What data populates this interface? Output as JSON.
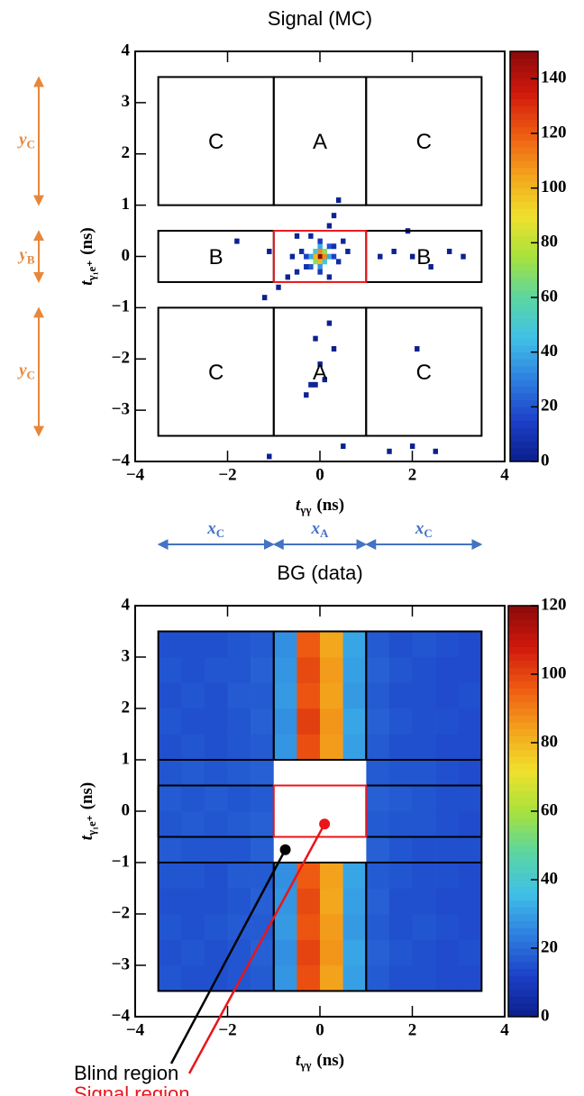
{
  "chart_data": [
    {
      "type": "heatmap",
      "title": "Signal (MC)",
      "xlabel": {
        "symbol": "t",
        "sub": "γγ",
        "unit": "(ns)"
      },
      "ylabel": {
        "symbol": "t",
        "sub": "γ₁e⁺",
        "unit": "(ns)"
      },
      "xlim": [
        -4,
        4
      ],
      "ylim": [
        -4,
        4
      ],
      "xticks": [
        {
          "value": -4,
          "label": "−4"
        },
        {
          "value": -2,
          "label": "−2"
        },
        0,
        2,
        4
      ],
      "yticks": [
        {
          "value": -4,
          "label": "−4"
        },
        {
          "value": -3,
          "label": "−3"
        },
        {
          "value": -2,
          "label": "−2"
        },
        {
          "value": -1,
          "label": "−1"
        },
        0,
        1,
        2,
        3,
        4
      ],
      "zlim": [
        0,
        150
      ],
      "zticks": [
        0,
        20,
        40,
        60,
        80,
        100,
        120,
        140
      ],
      "colormap": [
        "#0b1e8c",
        "#1c40c8",
        "#2f7fe0",
        "#3fc0e8",
        "#5ad6a0",
        "#a8e23c",
        "#f0e02c",
        "#f3a21c",
        "#ef5a12",
        "#d0180c",
        "#8a0a0a"
      ],
      "cell_size": 0.1,
      "cells": [
        [
          0,
          0,
          150
        ],
        [
          0.1,
          0,
          110
        ],
        [
          -0.1,
          0,
          100
        ],
        [
          0,
          0.1,
          110
        ],
        [
          0,
          -0.1,
          100
        ],
        [
          0.1,
          0.1,
          70
        ],
        [
          -0.1,
          -0.1,
          70
        ],
        [
          0.1,
          -0.1,
          50
        ],
        [
          -0.1,
          0.1,
          50
        ],
        [
          0.2,
          0,
          40
        ],
        [
          -0.2,
          0,
          40
        ],
        [
          0,
          0.2,
          40
        ],
        [
          0,
          -0.2,
          35
        ],
        [
          0.2,
          0.2,
          20
        ],
        [
          -0.2,
          -0.2,
          20
        ],
        [
          0.3,
          0,
          15
        ],
        [
          -0.3,
          0,
          15
        ],
        [
          0,
          0.3,
          12
        ],
        [
          0,
          -0.3,
          12
        ],
        [
          -0.3,
          -0.2,
          8
        ],
        [
          0.3,
          0.2,
          8
        ],
        [
          -0.4,
          0.1,
          6
        ],
        [
          0.4,
          -0.1,
          6
        ],
        [
          -0.5,
          -0.3,
          4
        ],
        [
          0.5,
          0.3,
          4
        ],
        [
          -0.6,
          0,
          3
        ],
        [
          0.6,
          0.1,
          3
        ],
        [
          -0.2,
          0.4,
          3
        ],
        [
          0.2,
          -0.4,
          3
        ],
        [
          0.3,
          0.8,
          2
        ],
        [
          0.4,
          1.1,
          1
        ],
        [
          0.2,
          0.6,
          2
        ],
        [
          -0.5,
          0.4,
          2
        ],
        [
          -0.7,
          -0.4,
          2
        ],
        [
          -0.9,
          -0.6,
          1
        ],
        [
          -1.2,
          -0.8,
          1
        ],
        [
          -1.1,
          0.1,
          1
        ],
        [
          -1.8,
          0.3,
          1
        ],
        [
          1.3,
          0,
          2
        ],
        [
          1.6,
          0.1,
          1
        ],
        [
          2.0,
          0,
          1
        ],
        [
          2.4,
          -0.2,
          1
        ],
        [
          2.8,
          0.1,
          1
        ],
        [
          3.1,
          0,
          1
        ],
        [
          1.9,
          0.5,
          1
        ],
        [
          0.2,
          -1.3,
          1
        ],
        [
          -0.1,
          -1.6,
          1
        ],
        [
          -0.2,
          -2.5,
          3
        ],
        [
          -0.1,
          -2.5,
          3
        ],
        [
          0.1,
          -2.4,
          2
        ],
        [
          -0.3,
          -2.7,
          2
        ],
        [
          0,
          -2.1,
          1
        ],
        [
          0.3,
          -1.8,
          1
        ],
        [
          2.1,
          -1.8,
          1
        ],
        [
          0.5,
          -3.7,
          1
        ],
        [
          1.5,
          -3.8,
          1
        ],
        [
          2.0,
          -3.7,
          1
        ],
        [
          2.5,
          -3.8,
          1
        ],
        [
          -1.1,
          -3.9,
          1
        ]
      ],
      "regions": [
        {
          "label": "C",
          "x": [
            -3.5,
            -1
          ],
          "y": [
            1,
            3.5
          ]
        },
        {
          "label": "A",
          "x": [
            -1,
            1
          ],
          "y": [
            1,
            3.5
          ]
        },
        {
          "label": "C",
          "x": [
            1,
            3.5
          ],
          "y": [
            1,
            3.5
          ]
        },
        {
          "label": "B",
          "x": [
            -3.5,
            -1
          ],
          "y": [
            -0.5,
            0.5
          ]
        },
        {
          "label": "B",
          "x": [
            1,
            3.5
          ],
          "y": [
            -0.5,
            0.5
          ]
        },
        {
          "label": "C",
          "x": [
            -3.5,
            -1
          ],
          "y": [
            -3.5,
            -1
          ]
        },
        {
          "label": "A",
          "x": [
            -1,
            1
          ],
          "y": [
            -3.5,
            -1
          ]
        },
        {
          "label": "C",
          "x": [
            1,
            3.5
          ],
          "y": [
            -3.5,
            -1
          ]
        }
      ],
      "signal_region": {
        "x": [
          -1,
          1
        ],
        "y": [
          -0.5,
          0.5
        ],
        "color": "#e8161b"
      },
      "y_annotations": [
        {
          "symbol": "y",
          "sub": "C",
          "y": [
            1,
            3.5
          ]
        },
        {
          "symbol": "y",
          "sub": "B",
          "y": [
            -0.5,
            0.5
          ]
        },
        {
          "symbol": "y",
          "sub": "C",
          "y": [
            -3.5,
            -1
          ]
        }
      ],
      "x_annotations": [
        {
          "symbol": "x",
          "sub": "C",
          "x": [
            -3.5,
            -1
          ]
        },
        {
          "symbol": "x",
          "sub": "A",
          "x": [
            -1,
            1
          ]
        },
        {
          "symbol": "x",
          "sub": "C",
          "x": [
            1,
            3.5
          ]
        }
      ],
      "annotation_colors": {
        "y": "#e8873a",
        "x": "#4472c4"
      }
    },
    {
      "type": "heatmap",
      "title": "BG (data)",
      "xlabel": {
        "symbol": "t",
        "sub": "γγ",
        "unit": "(ns)"
      },
      "ylabel": {
        "symbol": "t",
        "sub": "γ₁e⁺",
        "unit": "(ns)"
      },
      "xlim": [
        -4,
        4
      ],
      "ylim": [
        -4,
        4
      ],
      "xticks": [
        {
          "value": -4,
          "label": "−4"
        },
        {
          "value": -2,
          "label": "−2"
        },
        0,
        2,
        4
      ],
      "yticks": [
        {
          "value": -4,
          "label": "−4"
        },
        {
          "value": -3,
          "label": "−3"
        },
        {
          "value": -2,
          "label": "−2"
        },
        {
          "value": -1,
          "label": "−1"
        },
        0,
        1,
        2,
        3,
        4
      ],
      "zlim": [
        0,
        120
      ],
      "zticks": [
        0,
        20,
        40,
        60,
        80,
        100,
        120
      ],
      "colormap": [
        "#0b1e8c",
        "#1c40c8",
        "#2f7fe0",
        "#3fc0e8",
        "#5ad6a0",
        "#a8e23c",
        "#f0e02c",
        "#f3a21c",
        "#ef5a12",
        "#d0180c",
        "#8a0a0a"
      ],
      "xbins": [
        -3.5,
        -3,
        -2.5,
        -2,
        -1.5,
        -1,
        -0.5,
        0,
        0.5,
        1,
        1.5,
        2,
        2.5,
        3,
        3.5
      ],
      "ybins": [
        -3.5,
        -3,
        -2.5,
        -2,
        -1.5,
        -1,
        -0.5,
        0,
        0.5,
        1,
        1.5,
        2,
        2.5,
        3,
        3.5
      ],
      "z": [
        [
          16,
          15,
          15,
          16,
          17,
          28,
          98,
          84,
          30,
          17,
          15,
          15,
          14,
          14
        ],
        [
          15,
          16,
          15,
          16,
          18,
          27,
          100,
          86,
          31,
          18,
          16,
          15,
          14,
          15
        ],
        [
          16,
          15,
          16,
          17,
          17,
          29,
          97,
          85,
          29,
          17,
          15,
          16,
          15,
          14
        ],
        [
          15,
          15,
          15,
          16,
          18,
          28,
          99,
          83,
          30,
          18,
          15,
          15,
          14,
          14
        ],
        [
          16,
          16,
          15,
          17,
          17,
          27,
          96,
          84,
          31,
          17,
          16,
          15,
          15,
          14
        ],
        [
          17,
          16,
          16,
          16,
          18,
          null,
          null,
          null,
          null,
          18,
          16,
          15,
          15,
          15
        ],
        [
          16,
          17,
          16,
          17,
          18,
          null,
          null,
          null,
          null,
          17,
          16,
          16,
          15,
          14
        ],
        [
          17,
          16,
          17,
          16,
          17,
          null,
          null,
          null,
          null,
          18,
          17,
          16,
          15,
          15
        ],
        [
          16,
          17,
          16,
          17,
          18,
          null,
          null,
          null,
          null,
          17,
          16,
          16,
          15,
          14
        ],
        [
          15,
          16,
          15,
          16,
          17,
          28,
          98,
          85,
          30,
          17,
          15,
          15,
          14,
          14
        ],
        [
          16,
          15,
          15,
          16,
          18,
          27,
          101,
          86,
          31,
          18,
          16,
          15,
          15,
          14
        ],
        [
          15,
          16,
          15,
          17,
          17,
          29,
          97,
          84,
          29,
          17,
          15,
          15,
          14,
          15
        ],
        [
          16,
          15,
          16,
          16,
          18,
          28,
          99,
          85,
          30,
          18,
          16,
          15,
          14,
          14
        ],
        [
          15,
          15,
          15,
          16,
          17,
          27,
          96,
          83,
          31,
          17,
          15,
          16,
          15,
          14
        ]
      ],
      "boxes": [
        {
          "x": [
            -3.5,
            -1
          ],
          "y": [
            1,
            3.5
          ]
        },
        {
          "x": [
            -1,
            1
          ],
          "y": [
            1,
            3.5
          ]
        },
        {
          "x": [
            1,
            3.5
          ],
          "y": [
            1,
            3.5
          ]
        },
        {
          "x": [
            -3.5,
            3.5
          ],
          "y": [
            -1,
            1
          ]
        },
        {
          "x": [
            -3.5,
            3.5
          ],
          "y": [
            -0.5,
            0.5
          ]
        },
        {
          "x": [
            -3.5,
            -1
          ],
          "y": [
            -3.5,
            -1
          ]
        },
        {
          "x": [
            -1,
            1
          ],
          "y": [
            -3.5,
            -1
          ]
        },
        {
          "x": [
            1,
            3.5
          ],
          "y": [
            -3.5,
            -1
          ]
        }
      ],
      "blind_region": {
        "x": [
          -1,
          1
        ],
        "y": [
          -1,
          1
        ]
      },
      "signal_region": {
        "x": [
          -1,
          1
        ],
        "y": [
          -0.5,
          0.5
        ],
        "color": "#e8161b"
      },
      "callouts": [
        {
          "text": "Blind region",
          "color": "#000000",
          "point": [
            -0.75,
            -0.75
          ]
        },
        {
          "text": "Signal region",
          "color": "#e8161b",
          "point": [
            0.1,
            -0.25
          ]
        }
      ]
    }
  ]
}
